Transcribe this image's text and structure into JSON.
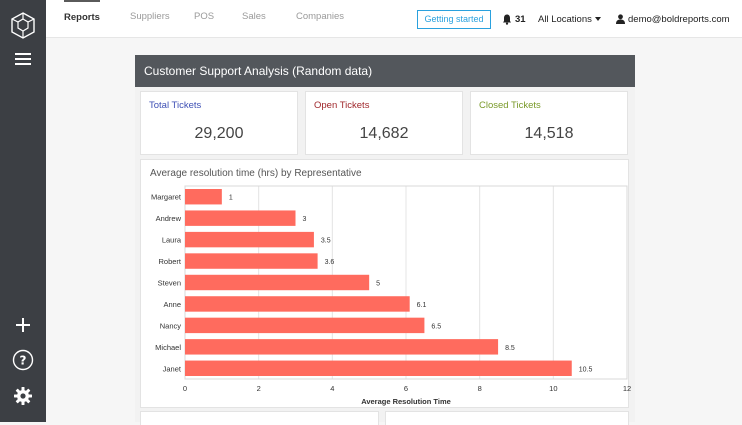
{
  "nav": {
    "tabs": [
      {
        "label": "Reports",
        "active": true
      },
      {
        "label": "Suppliers",
        "active": false
      },
      {
        "label": "POS",
        "active": false
      },
      {
        "label": "Sales",
        "active": false
      },
      {
        "label": "Companies",
        "active": false
      }
    ],
    "getting_started": "Getting started",
    "notifications_count": "31",
    "locations": "All Locations",
    "user_email": "demo@boldreports.com"
  },
  "sidebar": {
    "icons": [
      "logo-icon",
      "hamburger-menu-icon",
      "plus-icon",
      "help-icon",
      "gear-icon"
    ]
  },
  "dashboard": {
    "title": "Customer Support Analysis (Random data)",
    "kpis": [
      {
        "label": "Total Tickets",
        "value": "29,200",
        "color": "#3f51b5"
      },
      {
        "label": "Open Tickets",
        "value": "14,682",
        "color": "#a0282c"
      },
      {
        "label": "Closed Tickets",
        "value": "14,518",
        "color": "#7a9a2a"
      }
    ]
  },
  "chart_data": {
    "type": "bar",
    "orientation": "horizontal",
    "title": "Average resolution time (hrs) by Representative",
    "xlabel": "Average Resolution Time",
    "ylabel": "",
    "categories": [
      "Margaret",
      "Andrew",
      "Laura",
      "Robert",
      "Steven",
      "Anne",
      "Nancy",
      "Michael",
      "Janet"
    ],
    "values": [
      1,
      3,
      3.5,
      3.6,
      5,
      6.1,
      6.5,
      8.5,
      10.5
    ],
    "value_labels": [
      "1",
      "3",
      "3.5",
      "3.6",
      "5",
      "6.1",
      "6.5",
      "8.5",
      "10.5"
    ],
    "xlim": [
      0,
      12
    ],
    "xticks": [
      0,
      2,
      4,
      6,
      8,
      10,
      12
    ],
    "grid": true,
    "bar_color": "#ff6b5e"
  }
}
